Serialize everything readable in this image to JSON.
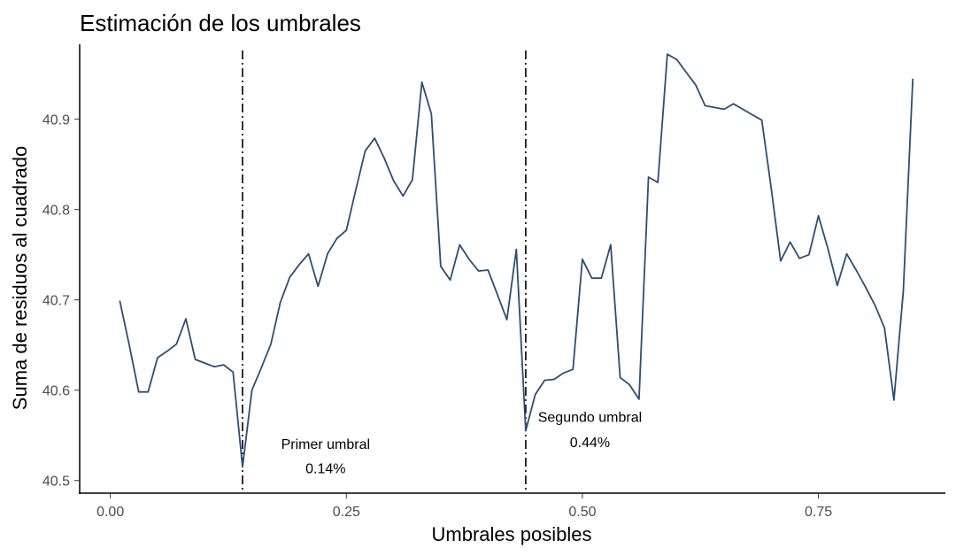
{
  "chart_data": {
    "type": "line",
    "title": "Estimación de los umbrales",
    "xlabel": "Umbrales posibles",
    "ylabel": "Suma de residuos al cuadrado",
    "xlim": [
      -0.0325,
      0.8845
    ],
    "ylim": [
      40.486,
      40.983
    ],
    "xticks": [
      0.0,
      0.25,
      0.5,
      0.75
    ],
    "xtick_labels": [
      "0.00",
      "0.25",
      "0.50",
      "0.75"
    ],
    "yticks": [
      40.5,
      40.6,
      40.7,
      40.8,
      40.9
    ],
    "ytick_labels": [
      "40.5",
      "40.6",
      "40.7",
      "40.8",
      "40.9"
    ],
    "grid": false,
    "series": [
      {
        "color": "#2c4e74",
        "x": [
          0.01,
          0.02,
          0.03,
          0.04,
          0.05,
          0.06,
          0.07,
          0.08,
          0.09,
          0.1,
          0.11,
          0.12,
          0.13,
          0.14,
          0.15,
          0.16,
          0.17,
          0.18,
          0.19,
          0.2,
          0.21,
          0.22,
          0.23,
          0.24,
          0.25,
          0.26,
          0.27,
          0.28,
          0.29,
          0.3,
          0.31,
          0.32,
          0.33,
          0.34,
          0.35,
          0.36,
          0.37,
          0.38,
          0.39,
          0.4,
          0.41,
          0.42,
          0.43,
          0.44,
          0.45,
          0.46,
          0.47,
          0.48,
          0.49,
          0.5,
          0.51,
          0.52,
          0.53,
          0.54,
          0.55,
          0.56,
          0.57,
          0.58,
          0.59,
          0.6,
          0.61,
          0.62,
          0.63,
          0.64,
          0.65,
          0.66,
          0.67,
          0.68,
          0.69,
          0.7,
          0.71,
          0.72,
          0.73,
          0.74,
          0.75,
          0.76,
          0.77,
          0.78,
          0.79,
          0.8,
          0.81,
          0.82,
          0.83,
          0.84,
          0.85
        ],
        "y": [
          40.699,
          40.65,
          40.598,
          40.598,
          40.636,
          40.643,
          40.651,
          40.679,
          40.634,
          40.63,
          40.626,
          40.628,
          40.62,
          40.515,
          40.6,
          40.625,
          40.651,
          40.697,
          40.725,
          40.739,
          40.751,
          40.715,
          40.751,
          40.768,
          40.777,
          40.822,
          40.865,
          40.879,
          40.857,
          40.832,
          40.815,
          40.833,
          40.941,
          40.906,
          40.737,
          40.722,
          40.761,
          40.745,
          40.732,
          40.733,
          40.706,
          40.678,
          40.756,
          40.555,
          40.595,
          40.611,
          40.612,
          40.619,
          40.623,
          40.745,
          40.724,
          40.724,
          40.761,
          40.614,
          40.606,
          40.59,
          40.836,
          40.83,
          40.972,
          40.966,
          40.952,
          40.938,
          40.915,
          40.913,
          40.911,
          40.917,
          40.911,
          40.905,
          40.899,
          40.824,
          40.743,
          40.764,
          40.746,
          40.75,
          40.793,
          40.757,
          40.716,
          40.751,
          40.733,
          40.714,
          40.694,
          40.669,
          40.589,
          40.71,
          40.945
        ]
      }
    ],
    "vlines": [
      {
        "x": 0.14,
        "style": "dash-dot",
        "color": "#000000"
      },
      {
        "x": 0.44,
        "style": "dash-dot",
        "color": "#000000"
      }
    ],
    "annotations": [
      {
        "text": "Primer umbral",
        "x": 0.228,
        "y": 40.535
      },
      {
        "text": "0.14%",
        "x": 0.228,
        "y": 40.508
      },
      {
        "text": "Segundo umbral",
        "x": 0.508,
        "y": 40.565
      },
      {
        "text": "0.44%",
        "x": 0.508,
        "y": 40.537
      }
    ]
  }
}
